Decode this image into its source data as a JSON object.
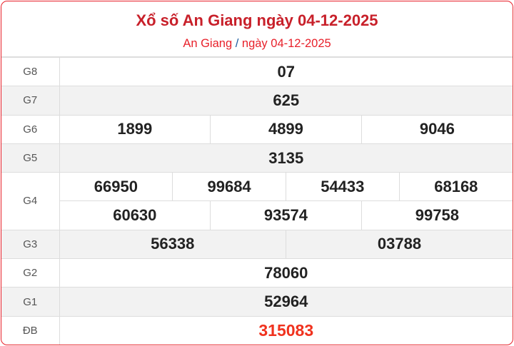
{
  "header": {
    "title": "Xổ số An Giang ngày 04-12-2025",
    "breadcrumb_province": "An Giang",
    "breadcrumb_separator": "/",
    "breadcrumb_date": "ngày 04-12-2025"
  },
  "prizes": [
    {
      "label": "G8",
      "numbers": [
        "07"
      ]
    },
    {
      "label": "G7",
      "numbers": [
        "625"
      ]
    },
    {
      "label": "G6",
      "numbers": [
        "1899",
        "4899",
        "9046"
      ]
    },
    {
      "label": "G5",
      "numbers": [
        "3135"
      ]
    },
    {
      "label": "G4",
      "numbers": [
        "66950",
        "99684",
        "54433",
        "68168",
        "60630",
        "93574",
        "99758"
      ]
    },
    {
      "label": "G3",
      "numbers": [
        "56338",
        "03788"
      ]
    },
    {
      "label": "G2",
      "numbers": [
        "78060"
      ]
    },
    {
      "label": "G1",
      "numbers": [
        "52964"
      ]
    },
    {
      "label": "ĐB",
      "numbers": [
        "315083"
      ]
    }
  ],
  "colors": {
    "accent": "#e8202a",
    "title": "#c8202a",
    "special": "#f0321e"
  }
}
